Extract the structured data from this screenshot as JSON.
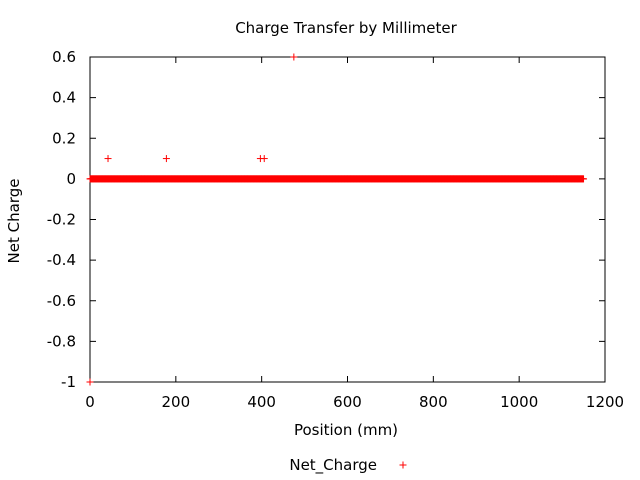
{
  "chart_data": {
    "type": "scatter",
    "title": "Charge Transfer by Millimeter",
    "xlabel": "Position (mm)",
    "ylabel": "Net Charge",
    "xlim": [
      0,
      1200
    ],
    "ylim": [
      -1,
      0.6
    ],
    "xticks": [
      "0",
      "200",
      "400",
      "600",
      "800",
      "1000",
      "1200"
    ],
    "yticks": [
      "0.6",
      "0.4",
      "0.2",
      "0",
      "-0.2",
      "-0.4",
      "-0.6",
      "-0.8",
      "-1"
    ],
    "grid": false,
    "legend_position": "bottom-center",
    "series": [
      {
        "name": "Net_Charge",
        "color": "#ff0000",
        "marker": "plus",
        "baseline": {
          "y": 0,
          "x_from": 0,
          "x_to": 1150,
          "step": 1
        },
        "points": [
          {
            "x": 0,
            "y": -1
          },
          {
            "x": 42,
            "y": 0.1
          },
          {
            "x": 178,
            "y": 0.1
          },
          {
            "x": 397,
            "y": 0.1
          },
          {
            "x": 406,
            "y": 0.1
          },
          {
            "x": 475,
            "y": 0.6
          }
        ]
      }
    ]
  }
}
